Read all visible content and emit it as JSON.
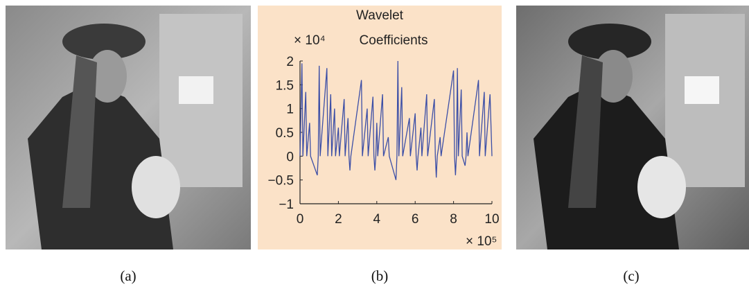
{
  "panels": {
    "captions": [
      "(a)",
      "(b)",
      "(c)"
    ]
  },
  "chart_data": {
    "type": "line",
    "title": [
      "Wavelet",
      "Coefficients"
    ],
    "y_multiplier": "× 10⁴",
    "x_multiplier": "× 10⁵",
    "x": [
      0,
      0.1,
      0.15,
      0.3,
      0.35,
      0.5,
      0.55,
      0.9,
      0.95,
      1.0,
      1.05,
      1.4,
      1.45,
      1.6,
      1.65,
      1.8,
      1.85,
      2.0,
      2.05,
      2.3,
      2.35,
      2.5,
      2.55,
      2.6,
      2.65,
      3.2,
      3.25,
      3.5,
      3.55,
      3.8,
      3.85,
      3.9,
      3.95,
      4.0,
      4.05,
      4.3,
      4.35,
      4.6,
      4.65,
      5.0,
      5.05,
      5.1,
      5.15,
      5.3,
      5.35,
      5.7,
      5.75,
      6.0,
      6.05,
      6.1,
      6.15,
      6.3,
      6.35,
      6.6,
      6.65,
      7.0,
      7.05,
      7.1,
      7.15,
      7.3,
      7.35,
      8.0,
      8.05,
      8.1,
      8.15,
      8.2,
      8.25,
      8.4,
      8.45,
      8.6,
      8.65,
      8.7,
      8.75,
      9.3,
      9.35,
      9.6,
      9.65,
      9.9,
      10
    ],
    "series": [
      {
        "color": "#3b4ea6",
        "values": [
          0,
          1.95,
          0,
          1.35,
          0,
          0.7,
          0,
          -0.4,
          0,
          1.9,
          0,
          1.85,
          0,
          1.3,
          0,
          1.0,
          0,
          0.6,
          0,
          1.2,
          0,
          0.8,
          0,
          -0.3,
          0,
          1.6,
          0,
          1.0,
          0,
          1.25,
          0,
          -0.3,
          0,
          0.7,
          0,
          1.3,
          0,
          0.4,
          0,
          -0.5,
          0,
          2.0,
          0,
          1.45,
          0,
          0.8,
          0,
          0.9,
          0,
          -0.3,
          0,
          0.6,
          0,
          1.3,
          0,
          1.2,
          0,
          -0.45,
          0,
          0.4,
          0,
          1.8,
          0,
          -0.4,
          0,
          1.85,
          0,
          1.4,
          0,
          -0.2,
          0,
          0.5,
          0,
          1.6,
          0,
          1.35,
          0,
          1.3,
          0
        ]
      }
    ],
    "xlim": [
      0,
      10
    ],
    "xticks": [
      0,
      2,
      4,
      6,
      8,
      10
    ],
    "ylim": [
      -1,
      2
    ],
    "yticks": [
      {
        "value": -1,
        "label": "−1"
      },
      {
        "value": -0.5,
        "label": "−0.5"
      },
      0,
      0.5,
      1,
      1.5,
      2
    ],
    "background": "#fbe2c8"
  }
}
